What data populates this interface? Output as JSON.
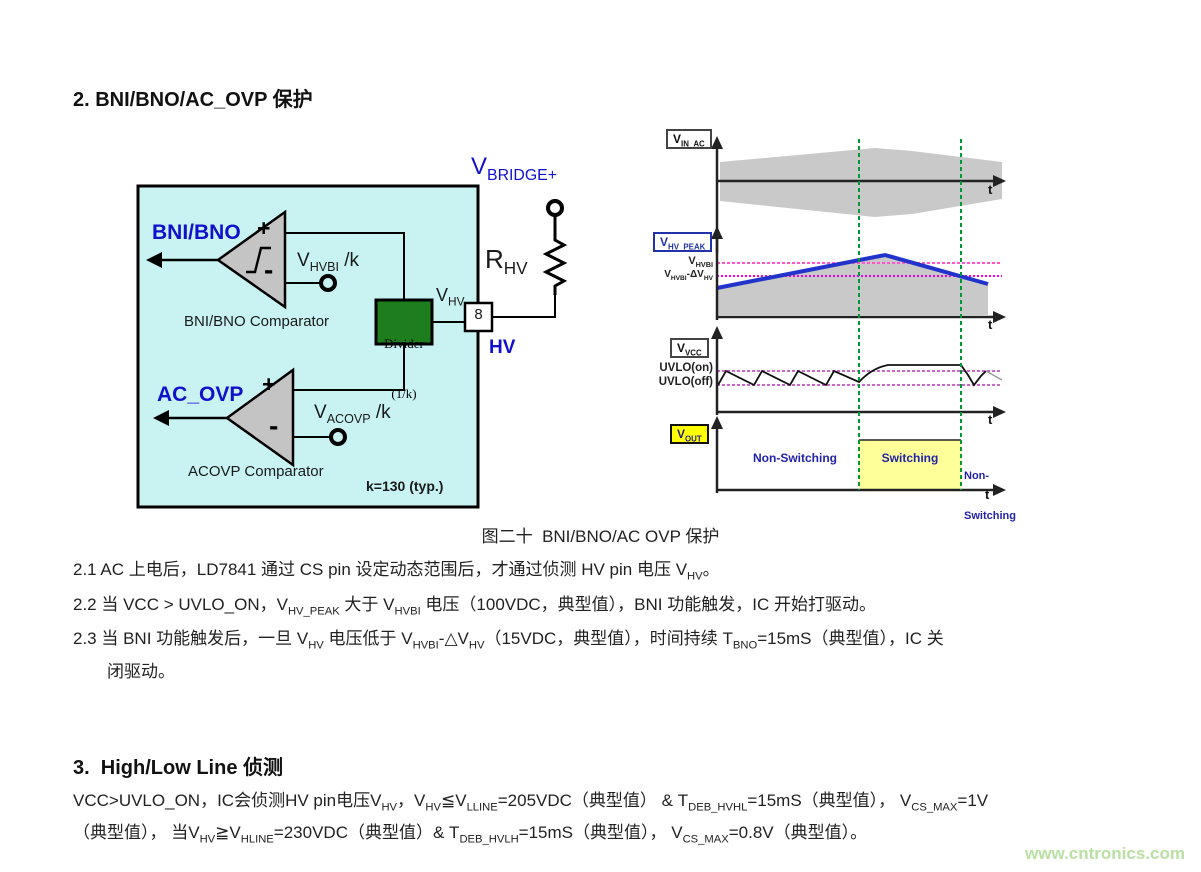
{
  "page": {
    "title": "2. BNI/BNO/AC_OVP 保护",
    "watermark": "www.cntronics.com"
  },
  "figure": {
    "caption": "图二十  BNI/BNO/AC OVP 保护",
    "circuit": {
      "bni_bno_output": "BNI/BNO",
      "ac_ovp_output": "AC_OVP",
      "comparator1_name": "BNI/BNO Comparator",
      "comparator2_name": "ACOVP Comparator",
      "plus": "+",
      "minus": "-",
      "vhvbi_ref": [
        {
          "t": "V"
        },
        {
          "t": "HVBI",
          "s": 1
        },
        {
          "t": " /k"
        }
      ],
      "vacovp_ref": [
        {
          "t": "V"
        },
        {
          "t": "ACOVP",
          "s": 1
        },
        {
          "t": " /k"
        }
      ],
      "divider_line1": "Divider",
      "divider_line2": "(1/k)",
      "pin_number": "8",
      "pin_name": "HV",
      "vhv_label": [
        {
          "t": "V"
        },
        {
          "t": "HV",
          "s": 1
        }
      ],
      "rhv_label": [
        {
          "t": "R"
        },
        {
          "t": "HV",
          "s": 1
        }
      ],
      "vbridge_label": [
        {
          "t": "V"
        },
        {
          "t": "BRIDGE+",
          "s": 1
        }
      ],
      "k_note": "k=130 (typ.)"
    },
    "waveforms": {
      "plot1_label": [
        {
          "t": "V"
        },
        {
          "t": "IN_AC",
          "s": 1
        }
      ],
      "plot2_label": [
        {
          "t": "V"
        },
        {
          "t": "HV_PEAK",
          "s": 1
        }
      ],
      "plot3_label": [
        {
          "t": "V"
        },
        {
          "t": "VCC",
          "s": 1
        }
      ],
      "plot4_label": [
        {
          "t": "V"
        },
        {
          "t": "OUT",
          "s": 1
        }
      ],
      "plot2_ref1": [
        {
          "t": "V"
        },
        {
          "t": "HVBI",
          "s": 1
        }
      ],
      "plot2_ref2": [
        {
          "t": "V"
        },
        {
          "t": "HVBI",
          "s": 1
        },
        {
          "t": "-ΔV"
        },
        {
          "t": "HV",
          "s": 1
        }
      ],
      "plot3_ref1": "UVLO(on)",
      "plot3_ref2": "UVLO(off)",
      "plot4_left": "Non-Switching",
      "plot4_mid": "Switching",
      "plot4_right1": "Non-",
      "plot4_right2": "Switching",
      "t_axis": "t"
    }
  },
  "notes": {
    "item1": [
      {
        "t": "2.1 AC 上电后，LD7841 通过 CS pin 设定动态范围后，才通过侦测 HV pin 电压 V"
      },
      {
        "t": "HV",
        "s": 1
      },
      {
        "t": "。"
      }
    ],
    "item2": [
      {
        "t": "2.2 当 VCC > UVLO_ON，V"
      },
      {
        "t": "HV_PEAK",
        "s": 1
      },
      {
        "t": " 大于 V"
      },
      {
        "t": "HVBI",
        "s": 1
      },
      {
        "t": " 电压（100VDC，典型值），BNI 功能触发，IC 开始打驱动。"
      }
    ],
    "item3_line1": [
      {
        "t": "2.3 当 BNI 功能触发后，一旦 V"
      },
      {
        "t": "HV",
        "s": 1
      },
      {
        "t": " 电压低于 V"
      },
      {
        "t": "HVBI",
        "s": 1
      },
      {
        "t": "-△V"
      },
      {
        "t": "HV",
        "s": 1
      },
      {
        "t": "（15VDC，典型值），时间持续 T"
      },
      {
        "t": "BNO",
        "s": 1
      },
      {
        "t": "=15mS（典型值），IC 关"
      }
    ],
    "item3_line2": [
      {
        "t": "闭驱动。"
      }
    ]
  },
  "section3": {
    "heading": "3.  High/Low Line 侦测",
    "line1": [
      {
        "t": "VCC>UVLO_ON，IC会侦测HV pin电压V"
      },
      {
        "t": "HV",
        "s": 1
      },
      {
        "t": "，V"
      },
      {
        "t": "HV",
        "s": 1
      },
      {
        "t": "≦V"
      },
      {
        "t": "LLINE",
        "s": 1
      },
      {
        "t": "=205VDC（典型值） & T"
      },
      {
        "t": "DEB_HVHL",
        "s": 1
      },
      {
        "t": "=15mS（典型值）， V"
      },
      {
        "t": "CS_MAX",
        "s": 1
      },
      {
        "t": "=1V"
      }
    ],
    "line2": [
      {
        "t": "（典型值）， 当V"
      },
      {
        "t": "HV",
        "s": 1
      },
      {
        "t": "≧V"
      },
      {
        "t": "HLINE",
        "s": 1
      },
      {
        "t": "=230VDC（典型值）& T"
      },
      {
        "t": "DEB_HVLH",
        "s": 1
      },
      {
        "t": "=15mS（典型值）， V"
      },
      {
        "t": "CS_MAX",
        "s": 1
      },
      {
        "t": "=0.8V（典型值）。"
      }
    ]
  },
  "colors": {
    "accent_blue": "#1111cc",
    "circuit_fill": "#c9f3f3",
    "divider_green": "#1e7e1e",
    "comparator_gray": "#c4c4c4",
    "envelope_gray": "#c9c9c9",
    "marker_green": "#009933",
    "ref_pink": "#ff55cc",
    "ref_magenta": "#ee00ee",
    "uvlo_violet": "#cc66cc",
    "switching_yellow": "#ffff99",
    "watermark_green": "#b9e0a3"
  }
}
